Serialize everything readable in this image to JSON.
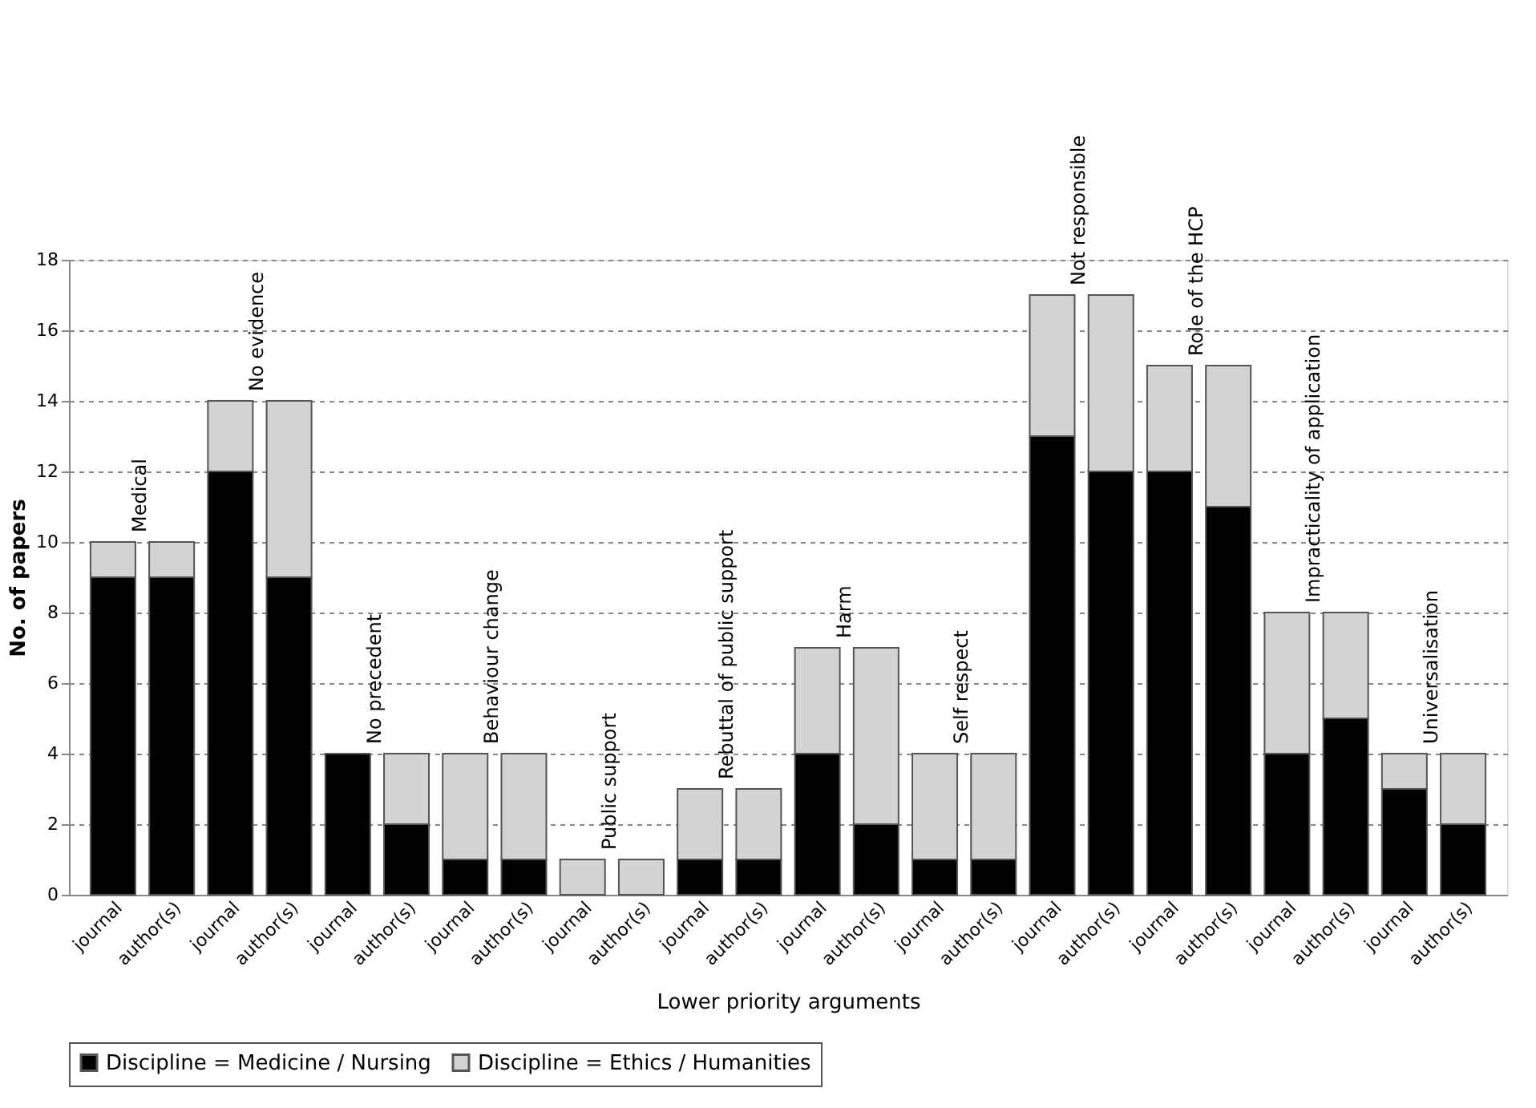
{
  "chart_data": {
    "type": "bar",
    "stacked": true,
    "xlabel": "Lower priority arguments",
    "ylabel": "No. of papers",
    "categories": [
      "journal",
      "author(s)",
      "journal",
      "author(s)",
      "journal",
      "author(s)",
      "journal",
      "author(s)",
      "journal",
      "author(s)",
      "journal",
      "author(s)",
      "journal",
      "author(s)",
      "journal",
      "author(s)",
      "journal",
      "author(s)",
      "journal",
      "author(s)",
      "journal",
      "author(s)",
      "journal",
      "author(s)"
    ],
    "series": [
      {
        "name": "Discipline = Medicine / Nursing",
        "color": "#000000",
        "values": [
          9,
          9,
          12,
          9,
          4,
          2,
          1,
          1,
          0,
          0,
          1,
          1,
          4,
          2,
          1,
          1,
          13,
          12,
          12,
          11,
          4,
          5,
          3,
          2
        ]
      },
      {
        "name": "Discipline = Ethics / Humanities",
        "color": "#d3d3d3",
        "values": [
          1,
          1,
          2,
          5,
          0,
          2,
          3,
          3,
          1,
          1,
          2,
          2,
          3,
          5,
          3,
          3,
          4,
          5,
          3,
          4,
          4,
          3,
          1,
          2
        ]
      }
    ],
    "annotations": [
      "Medical",
      "No evidence",
      "No precedent",
      "Behaviour change",
      "Public support",
      "Rebuttal of public support",
      "Harm",
      "Self respect",
      "Not responsible",
      "Role of the HCP",
      "Impracticality of application",
      "Universalisation"
    ],
    "ylim": [
      0,
      18
    ],
    "yticks": [
      0,
      2,
      4,
      6,
      8,
      10,
      12,
      14,
      16,
      18
    ],
    "grid": "y",
    "legend": "bottom"
  }
}
